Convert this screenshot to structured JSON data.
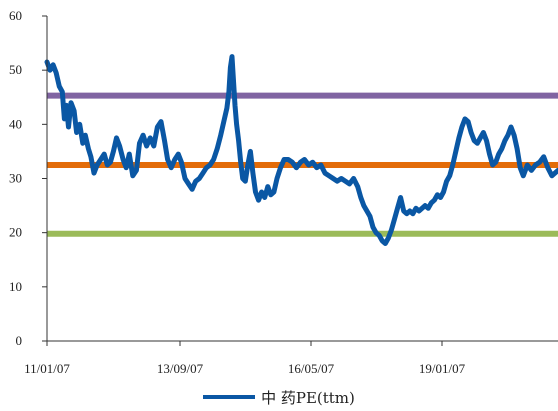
{
  "chart_data": {
    "type": "line",
    "title": "",
    "xlabel": "",
    "ylabel": "",
    "ylim": [
      0,
      60
    ],
    "yticks": [
      0,
      10,
      20,
      30,
      40,
      50,
      60
    ],
    "x_tick_labels": [
      "11/01/07",
      "13/09/07",
      "16/05/07",
      "19/01/07"
    ],
    "grid": false,
    "legend_position": "bottom",
    "series": [
      {
        "name": "中 药PE(ttm)",
        "color": "#0a57a4",
        "points": [
          [
            0.0,
            51.5
          ],
          [
            0.006,
            50.0
          ],
          [
            0.012,
            51.0
          ],
          [
            0.018,
            49.5
          ],
          [
            0.024,
            47.0
          ],
          [
            0.03,
            46.0
          ],
          [
            0.034,
            41.0
          ],
          [
            0.038,
            43.5
          ],
          [
            0.042,
            39.5
          ],
          [
            0.047,
            44.0
          ],
          [
            0.053,
            42.5
          ],
          [
            0.058,
            38.5
          ],
          [
            0.064,
            40.0
          ],
          [
            0.07,
            36.5
          ],
          [
            0.075,
            38.0
          ],
          [
            0.081,
            35.5
          ],
          [
            0.086,
            34.0
          ],
          [
            0.092,
            31.0
          ],
          [
            0.098,
            32.5
          ],
          [
            0.105,
            33.5
          ],
          [
            0.112,
            34.5
          ],
          [
            0.118,
            32.5
          ],
          [
            0.124,
            33.0
          ],
          [
            0.13,
            35.0
          ],
          [
            0.136,
            37.5
          ],
          [
            0.142,
            36.0
          ],
          [
            0.149,
            33.5
          ],
          [
            0.155,
            32.0
          ],
          [
            0.161,
            34.5
          ],
          [
            0.168,
            30.5
          ],
          [
            0.175,
            31.5
          ],
          [
            0.181,
            36.5
          ],
          [
            0.188,
            38.0
          ],
          [
            0.195,
            36.0
          ],
          [
            0.202,
            37.5
          ],
          [
            0.209,
            36.0
          ],
          [
            0.216,
            39.5
          ],
          [
            0.223,
            40.5
          ],
          [
            0.23,
            37.0
          ],
          [
            0.236,
            33.5
          ],
          [
            0.243,
            32.0
          ],
          [
            0.25,
            33.5
          ],
          [
            0.257,
            34.5
          ],
          [
            0.263,
            33.0
          ],
          [
            0.27,
            30.0
          ],
          [
            0.277,
            29.0
          ],
          [
            0.284,
            28.0
          ],
          [
            0.291,
            29.5
          ],
          [
            0.298,
            30.0
          ],
          [
            0.305,
            31.0
          ],
          [
            0.312,
            32.0
          ],
          [
            0.319,
            32.5
          ],
          [
            0.326,
            33.5
          ],
          [
            0.333,
            35.5
          ],
          [
            0.34,
            38.0
          ],
          [
            0.346,
            40.5
          ],
          [
            0.352,
            43.0
          ],
          [
            0.356,
            46.0
          ],
          [
            0.359,
            50.5
          ],
          [
            0.362,
            52.5
          ],
          [
            0.365,
            48.0
          ],
          [
            0.368,
            43.5
          ],
          [
            0.371,
            40.0
          ],
          [
            0.375,
            37.0
          ],
          [
            0.379,
            33.0
          ],
          [
            0.383,
            30.0
          ],
          [
            0.388,
            29.5
          ],
          [
            0.393,
            32.5
          ],
          [
            0.398,
            35.0
          ],
          [
            0.403,
            31.0
          ],
          [
            0.408,
            27.5
          ],
          [
            0.414,
            26.0
          ],
          [
            0.42,
            27.5
          ],
          [
            0.426,
            26.5
          ],
          [
            0.432,
            28.5
          ],
          [
            0.438,
            27.0
          ],
          [
            0.444,
            27.5
          ],
          [
            0.45,
            30.0
          ],
          [
            0.457,
            32.0
          ],
          [
            0.464,
            33.5
          ],
          [
            0.472,
            33.5
          ],
          [
            0.48,
            33.0
          ],
          [
            0.488,
            32.0
          ],
          [
            0.496,
            33.0
          ],
          [
            0.504,
            33.5
          ],
          [
            0.512,
            32.5
          ],
          [
            0.52,
            33.0
          ],
          [
            0.528,
            32.0
          ],
          [
            0.536,
            32.5
          ],
          [
            0.544,
            31.0
          ],
          [
            0.552,
            30.5
          ],
          [
            0.56,
            30.0
          ],
          [
            0.568,
            29.5
          ],
          [
            0.576,
            30.0
          ],
          [
            0.584,
            29.5
          ],
          [
            0.592,
            29.0
          ],
          [
            0.6,
            30.0
          ],
          [
            0.608,
            28.5
          ],
          [
            0.614,
            26.5
          ],
          [
            0.62,
            25.0
          ],
          [
            0.626,
            24.0
          ],
          [
            0.632,
            23.0
          ],
          [
            0.638,
            21.0
          ],
          [
            0.644,
            20.0
          ],
          [
            0.65,
            19.5
          ],
          [
            0.656,
            18.5
          ],
          [
            0.662,
            18.0
          ],
          [
            0.668,
            19.0
          ],
          [
            0.674,
            20.5
          ],
          [
            0.68,
            22.5
          ],
          [
            0.686,
            24.5
          ],
          [
            0.692,
            26.5
          ],
          [
            0.698,
            24.0
          ],
          [
            0.704,
            23.5
          ],
          [
            0.71,
            24.0
          ],
          [
            0.716,
            23.5
          ],
          [
            0.722,
            24.5
          ],
          [
            0.728,
            24.0
          ],
          [
            0.734,
            24.5
          ],
          [
            0.74,
            25.0
          ],
          [
            0.746,
            24.5
          ],
          [
            0.752,
            25.5
          ],
          [
            0.758,
            26.0
          ],
          [
            0.764,
            27.0
          ],
          [
            0.77,
            26.5
          ],
          [
            0.776,
            27.5
          ],
          [
            0.782,
            29.5
          ],
          [
            0.788,
            30.5
          ],
          [
            0.794,
            32.5
          ],
          [
            0.8,
            35.0
          ],
          [
            0.806,
            37.5
          ],
          [
            0.812,
            39.5
          ],
          [
            0.818,
            41.0
          ],
          [
            0.824,
            40.5
          ],
          [
            0.83,
            38.5
          ],
          [
            0.836,
            37.0
          ],
          [
            0.842,
            36.5
          ],
          [
            0.848,
            37.5
          ],
          [
            0.854,
            38.5
          ],
          [
            0.86,
            37.0
          ],
          [
            0.866,
            34.5
          ],
          [
            0.872,
            32.5
          ],
          [
            0.878,
            33.0
          ],
          [
            0.884,
            34.5
          ],
          [
            0.89,
            35.5
          ],
          [
            0.896,
            37.0
          ],
          [
            0.902,
            38.0
          ],
          [
            0.908,
            39.5
          ],
          [
            0.914,
            38.0
          ],
          [
            0.92,
            35.5
          ],
          [
            0.926,
            32.0
          ],
          [
            0.932,
            30.5
          ],
          [
            0.94,
            32.5
          ],
          [
            0.948,
            31.5
          ],
          [
            0.956,
            32.5
          ],
          [
            0.964,
            33.0
          ],
          [
            0.972,
            34.0
          ],
          [
            0.98,
            32.0
          ],
          [
            0.988,
            30.5
          ],
          [
            1.0,
            31.5
          ]
        ]
      }
    ],
    "reference_lines": [
      {
        "value": 45.3,
        "color": "#8064a2"
      },
      {
        "value": 32.5,
        "color": "#e36c09"
      },
      {
        "value": 19.8,
        "color": "#9bbb59"
      }
    ]
  }
}
